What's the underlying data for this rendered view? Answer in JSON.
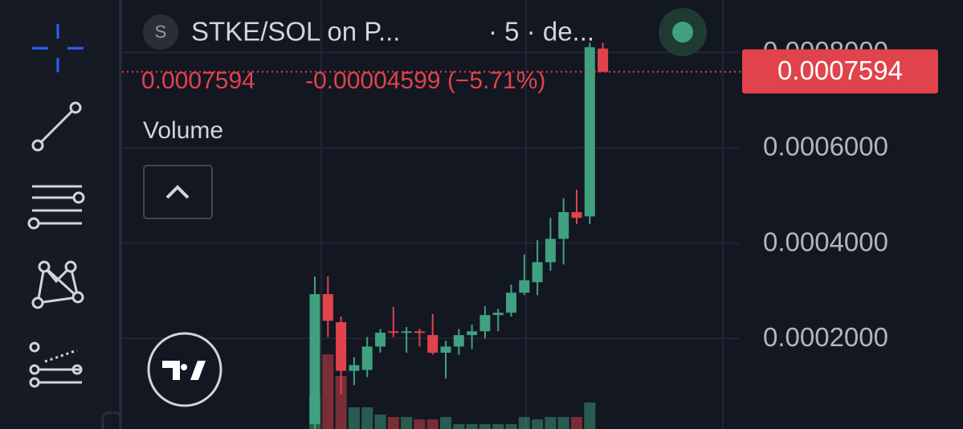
{
  "chart_data": {
    "type": "candlestick",
    "symbol_badge": "S",
    "symbol": "STKE/SOL on P...",
    "interval": "· 5 · de...",
    "legend_price": "0.0007594",
    "legend_change": "-0.00004599 (−5.71%)",
    "volume_label": "Volume",
    "last_price": 0.0007594,
    "up_color": "#3fa17f",
    "down_color": "#e0434b",
    "ylim": [
      1e-05,
      0.00091
    ],
    "yticks": [
      {
        "value": 0.0002,
        "label": "0.0002000"
      },
      {
        "value": 0.0004,
        "label": "0.0004000"
      },
      {
        "value": 0.0006,
        "label": "0.0006000"
      },
      {
        "value": 0.0008,
        "label": "0.0008000"
      }
    ],
    "grid": true,
    "open": [
      2e-05,
      0.000293,
      0.000234,
      0.000132,
      0.000134,
      0.000183,
      0.000215,
      0.000212,
      0.000215,
      0.000207,
      0.00017,
      0.000183,
      0.000207,
      0.000215,
      0.000249,
      0.000254,
      0.000296,
      0.000318,
      0.00036,
      0.000409,
      0.000465,
      0.000456,
      0.000808
    ],
    "high": [
      0.00033,
      0.00033,
      0.000246,
      0.000161,
      0.000203,
      0.00022,
      0.000266,
      0.000224,
      0.00022,
      0.000251,
      0.000195,
      0.00022,
      0.000229,
      0.000268,
      0.000262,
      0.000313,
      0.000376,
      0.000406,
      0.000453,
      0.000494,
      0.000512,
      0.00082,
      0.00082
    ],
    "low": [
      1e-05,
      0.000203,
      8.2e-05,
      0.000102,
      0.000119,
      0.00017,
      0.000203,
      0.00017,
      0.000183,
      0.000166,
      0.000116,
      0.000166,
      0.000178,
      0.0002,
      0.000215,
      0.000246,
      0.000291,
      0.000291,
      0.000342,
      0.000355,
      0.00044,
      0.00044,
      0.000759
    ],
    "close": [
      0.000293,
      0.000237,
      0.000132,
      0.000144,
      0.000183,
      0.000212,
      0.000212,
      0.000215,
      0.000212,
      0.00017,
      0.000183,
      0.000207,
      0.000215,
      0.000249,
      0.000254,
      0.000296,
      0.000322,
      0.00036,
      0.000409,
      0.000465,
      0.000453,
      0.000811,
      0.000759
    ],
    "volume": [
      14,
      31,
      22,
      9,
      9,
      6,
      5,
      5,
      4,
      4,
      5,
      2,
      2,
      2,
      2,
      2,
      5,
      4,
      5,
      5,
      5,
      11,
      0
    ],
    "volume_lim": [
      0,
      100
    ]
  }
}
